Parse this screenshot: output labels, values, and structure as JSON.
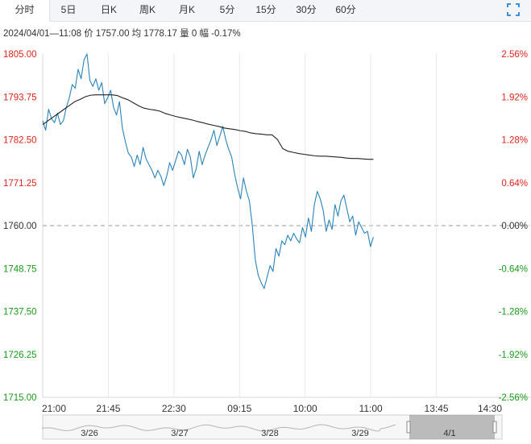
{
  "tabs": [
    {
      "label": "分时",
      "active": true
    },
    {
      "label": "5日"
    },
    {
      "label": "日K"
    },
    {
      "label": "周K"
    },
    {
      "label": "月K"
    },
    {
      "label": "5分"
    },
    {
      "label": "15分"
    },
    {
      "label": "30分"
    },
    {
      "label": "60分"
    }
  ],
  "info": {
    "datetime": "2024/04/01—11:08",
    "price_label": "价",
    "price": "1757.00",
    "avg_label": "均",
    "avg": "1778.17",
    "vol_label": "量",
    "vol": "0",
    "chg_label": "幅",
    "chg": "-0.17%"
  },
  "navigator": {
    "dates": [
      "3/26",
      "3/27",
      "3/28",
      "3/29",
      "4/1"
    ]
  },
  "colors": {
    "up": "#e0231c",
    "down": "#1a9a1a",
    "price_line": "#2b83ba",
    "avg_line": "#222222"
  },
  "chart_data": {
    "type": "line",
    "ylim": [
      1715.0,
      1805.0
    ],
    "y_ticks_left": [
      "1805.00",
      "1793.75",
      "1782.50",
      "1771.25",
      "1760.00",
      "1748.75",
      "1737.50",
      "1726.25",
      "1715.00"
    ],
    "y_ticks_right": [
      "2.56%",
      "1.92%",
      "1.28%",
      "0.64%",
      "0.00%",
      "-0.64%",
      "-1.28%",
      "-1.92%",
      "-2.56%"
    ],
    "prev_close": 1760.0,
    "x_ticks": [
      "21:00",
      "21:45",
      "22:30",
      "09:15",
      "10:00",
      "11:00",
      "13:45",
      "14:30"
    ],
    "session_progress": 0.72,
    "series": [
      {
        "name": "价",
        "values": [
          1787.5,
          1785.0,
          1790.5,
          1788.0,
          1787.0,
          1789.5,
          1786.5,
          1787.5,
          1791.0,
          1793.5,
          1797.0,
          1796.0,
          1801.0,
          1798.5,
          1803.5,
          1805.0,
          1798.0,
          1796.5,
          1798.5,
          1795.5,
          1797.5,
          1792.0,
          1793.5,
          1795.5,
          1791.0,
          1789.0,
          1792.5,
          1785.5,
          1782.0,
          1779.0,
          1778.0,
          1775.5,
          1778.5,
          1776.0,
          1780.5,
          1777.5,
          1776.0,
          1774.5,
          1772.5,
          1774.5,
          1773.0,
          1770.5,
          1773.0,
          1776.5,
          1774.5,
          1777.0,
          1779.5,
          1778.5,
          1776.0,
          1780.0,
          1778.0,
          1772.5,
          1775.0,
          1779.5,
          1776.0,
          1778.5,
          1780.5,
          1782.5,
          1785.0,
          1781.0,
          1783.5,
          1786.0,
          1782.5,
          1780.0,
          1778.0,
          1773.5,
          1770.0,
          1767.0,
          1772.5,
          1769.0,
          1766.5,
          1760.0,
          1751.0,
          1747.0,
          1745.0,
          1743.5,
          1746.5,
          1749.5,
          1748.0,
          1754.0,
          1752.0,
          1756.0,
          1755.0,
          1757.5,
          1756.0,
          1758.0,
          1756.5,
          1755.5,
          1759.5,
          1757.0,
          1762.0,
          1758.5,
          1765.5,
          1769.0,
          1767.0,
          1764.0,
          1758.5,
          1761.5,
          1759.0,
          1765.5,
          1762.5,
          1766.5,
          1768.0,
          1764.5,
          1761.0,
          1762.5,
          1757.5,
          1761.0,
          1759.5,
          1758.0,
          1758.5,
          1754.5,
          1757.0
        ]
      },
      {
        "name": "均",
        "values": [
          1786.5,
          1787.5,
          1788.5,
          1789.5,
          1790.5,
          1791.5,
          1792.5,
          1793.1,
          1793.8,
          1794.2,
          1794.3,
          1794.3,
          1794.3,
          1794.3,
          1794.1,
          1793.5,
          1793.0,
          1792.2,
          1791.4,
          1790.8,
          1790.5,
          1790.3,
          1790.0,
          1789.4,
          1789.0,
          1788.6,
          1788.3,
          1788.0,
          1787.7,
          1787.3,
          1787.0,
          1786.6,
          1786.3,
          1786.0,
          1785.6,
          1785.4,
          1785.2,
          1784.9,
          1784.7,
          1784.3,
          1784.1,
          1784.0,
          1783.8,
          1783.8,
          1782.6,
          1780.2,
          1779.5,
          1779.2,
          1778.9,
          1778.7,
          1778.5,
          1778.3,
          1778.2,
          1778.2,
          1778.1,
          1778.0,
          1777.9,
          1777.7,
          1777.6,
          1777.6,
          1777.5,
          1777.4,
          1777.4
        ]
      }
    ]
  }
}
